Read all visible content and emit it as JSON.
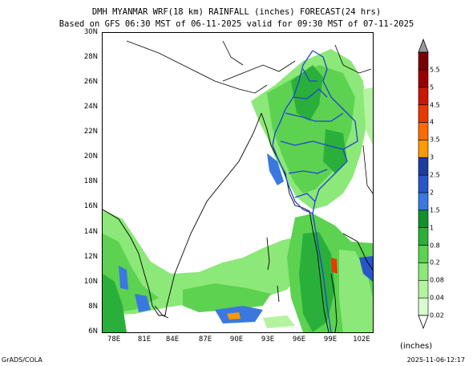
{
  "title_line1": "DMH MYANMAR WRF(18 km) RAINFALL (inches) FORECAST(24 hrs)",
  "title_line2": "Based on GFS 06:30 MST of 06-11-2025 valid for 09:30 MST of 07-11-2025",
  "lat_labels": [
    "30N",
    "28N",
    "26N",
    "24N",
    "22N",
    "20N",
    "18N",
    "16N",
    "14N",
    "12N",
    "10N",
    "8N",
    "6N"
  ],
  "lon_labels": [
    "78E",
    "81E",
    "84E",
    "87E",
    "90E",
    "93E",
    "96E",
    "99E",
    "102E"
  ],
  "lat_values": [
    30,
    28,
    26,
    24,
    22,
    20,
    18,
    16,
    14,
    12,
    10,
    8,
    6
  ],
  "lon_values": [
    78,
    81,
    84,
    87,
    90,
    93,
    96,
    99,
    102
  ],
  "legend": {
    "levels": [
      "0.02",
      "0.04",
      "0.08",
      "0.2",
      "0.8",
      "1",
      "1.5",
      "2",
      "2.5",
      "3",
      "3.5",
      "4",
      "4.5",
      "5",
      "5.5"
    ],
    "colors": [
      "#d8fcd0",
      "#b4f4a0",
      "#8ce878",
      "#5cd250",
      "#2ab03a",
      "#12902a",
      "#3a78e0",
      "#2856c8",
      "#1c3ca0",
      "#fc9a00",
      "#fc6a00",
      "#e83a00",
      "#c81800",
      "#9a0000",
      "#780000"
    ],
    "unit": "(inches)"
  },
  "footer_left": "GrADS/COLA",
  "footer_right": "2025-11-06-12:17"
}
